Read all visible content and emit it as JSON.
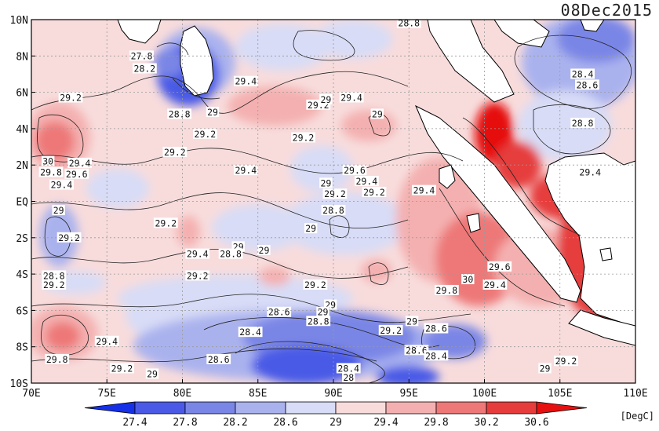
{
  "map": {
    "date_label": "08Dec2015",
    "unit_label": "[DegC]",
    "lat_labels": [
      "10N",
      "8N",
      "6N",
      "4N",
      "2N",
      "EQ",
      "2S",
      "4S",
      "6S",
      "8S",
      "10S"
    ],
    "lon_labels": [
      "70E",
      "75E",
      "80E",
      "85E",
      "90E",
      "95E",
      "100E",
      "105E",
      "110E"
    ],
    "colorbar": {
      "values": [
        "27.4",
        "27.8",
        "28.2",
        "28.6",
        "29",
        "29.4",
        "29.8",
        "30.2",
        "30.6"
      ],
      "colors": [
        "#1530e6",
        "#4a5ae6",
        "#7a86e6",
        "#aab2ee",
        "#d8dcf6",
        "#f8dcdc",
        "#f4b0b0",
        "#ee7878",
        "#e63c3c",
        "#e61010"
      ]
    },
    "contour_labels": [
      {
        "text": "28.8",
        "lon": 95.0,
        "lat": 9.8
      },
      {
        "text": "27.8",
        "lon": 77.3,
        "lat": 8.0
      },
      {
        "text": "28.2",
        "lon": 77.5,
        "lat": 7.3
      },
      {
        "text": "29.4",
        "lon": 84.2,
        "lat": 6.6
      },
      {
        "text": "29.2",
        "lon": 72.6,
        "lat": 5.7
      },
      {
        "text": "29.2",
        "lon": 89.0,
        "lat": 5.3
      },
      {
        "text": "29.4",
        "lon": 91.2,
        "lat": 5.7
      },
      {
        "text": "29",
        "lon": 89.5,
        "lat": 5.6
      },
      {
        "text": "29",
        "lon": 92.9,
        "lat": 4.8
      },
      {
        "text": "28.8",
        "lon": 79.8,
        "lat": 4.8
      },
      {
        "text": "29",
        "lon": 82.0,
        "lat": 4.9
      },
      {
        "text": "29.2",
        "lon": 81.5,
        "lat": 3.7
      },
      {
        "text": "28.4",
        "lon": 106.5,
        "lat": 7.0
      },
      {
        "text": "28.6",
        "lon": 106.8,
        "lat": 6.4
      },
      {
        "text": "28.8",
        "lon": 106.5,
        "lat": 4.3
      },
      {
        "text": "29.2",
        "lon": 88.0,
        "lat": 3.5
      },
      {
        "text": "30",
        "lon": 71.1,
        "lat": 2.2
      },
      {
        "text": "29.4",
        "lon": 73.2,
        "lat": 2.1
      },
      {
        "text": "29.8",
        "lon": 71.3,
        "lat": 1.6
      },
      {
        "text": "29.6",
        "lon": 73.0,
        "lat": 1.5
      },
      {
        "text": "29.4",
        "lon": 72.0,
        "lat": 0.9
      },
      {
        "text": "29.2",
        "lon": 79.5,
        "lat": 2.7
      },
      {
        "text": "29.4",
        "lon": 84.2,
        "lat": 1.7
      },
      {
        "text": "29.6",
        "lon": 91.4,
        "lat": 1.7
      },
      {
        "text": "29.4",
        "lon": 92.2,
        "lat": 1.1
      },
      {
        "text": "29",
        "lon": 89.5,
        "lat": 1.0
      },
      {
        "text": "29.2",
        "lon": 92.7,
        "lat": 0.5
      },
      {
        "text": "29.2",
        "lon": 90.1,
        "lat": 0.4
      },
      {
        "text": "29.4",
        "lon": 96.0,
        "lat": 0.6
      },
      {
        "text": "29.4",
        "lon": 107.0,
        "lat": 1.6
      },
      {
        "text": "28.8",
        "lon": 90.0,
        "lat": -0.5
      },
      {
        "text": "29",
        "lon": 71.8,
        "lat": -0.5
      },
      {
        "text": "29.2",
        "lon": 78.9,
        "lat": -1.2
      },
      {
        "text": "29",
        "lon": 88.5,
        "lat": -1.5
      },
      {
        "text": "29.2",
        "lon": 72.5,
        "lat": -2.0
      },
      {
        "text": "29",
        "lon": 83.7,
        "lat": -2.5
      },
      {
        "text": "29",
        "lon": 85.4,
        "lat": -2.7
      },
      {
        "text": "29.4",
        "lon": 81.0,
        "lat": -2.9
      },
      {
        "text": "28.8",
        "lon": 83.2,
        "lat": -2.9
      },
      {
        "text": "29.6",
        "lon": 101.0,
        "lat": -3.6
      },
      {
        "text": "28.8",
        "lon": 71.5,
        "lat": -4.1
      },
      {
        "text": "29.2",
        "lon": 71.5,
        "lat": -4.6
      },
      {
        "text": "29.2",
        "lon": 81.0,
        "lat": -4.1
      },
      {
        "text": "30",
        "lon": 98.9,
        "lat": -4.3
      },
      {
        "text": "29.4",
        "lon": 100.7,
        "lat": -4.6
      },
      {
        "text": "29.2",
        "lon": 88.8,
        "lat": -4.6
      },
      {
        "text": "29.8",
        "lon": 97.5,
        "lat": -4.9
      },
      {
        "text": "29",
        "lon": 89.8,
        "lat": -5.7
      },
      {
        "text": "28.6",
        "lon": 86.4,
        "lat": -6.1
      },
      {
        "text": "29",
        "lon": 89.3,
        "lat": -6.1
      },
      {
        "text": "28.8",
        "lon": 89.0,
        "lat": -6.6
      },
      {
        "text": "29",
        "lon": 95.2,
        "lat": -6.6
      },
      {
        "text": "28.4",
        "lon": 84.5,
        "lat": -7.2
      },
      {
        "text": "29.2",
        "lon": 93.8,
        "lat": -7.1
      },
      {
        "text": "28.6",
        "lon": 96.8,
        "lat": -7.0
      },
      {
        "text": "29.4",
        "lon": 75.0,
        "lat": -7.7
      },
      {
        "text": "28.6",
        "lon": 95.5,
        "lat": -8.2
      },
      {
        "text": "28.4",
        "lon": 96.8,
        "lat": -8.5
      },
      {
        "text": "29.8",
        "lon": 71.7,
        "lat": -8.7
      },
      {
        "text": "28.6",
        "lon": 82.4,
        "lat": -8.7
      },
      {
        "text": "29.2",
        "lon": 76.0,
        "lat": -9.2
      },
      {
        "text": "29",
        "lon": 78.0,
        "lat": -9.5
      },
      {
        "text": "28.4",
        "lon": 91.0,
        "lat": -9.2
      },
      {
        "text": "28",
        "lon": 91.0,
        "lat": -9.7
      },
      {
        "text": "29.2",
        "lon": 105.4,
        "lat": -8.8
      },
      {
        "text": "29",
        "lon": 104.0,
        "lat": -9.2
      }
    ]
  }
}
